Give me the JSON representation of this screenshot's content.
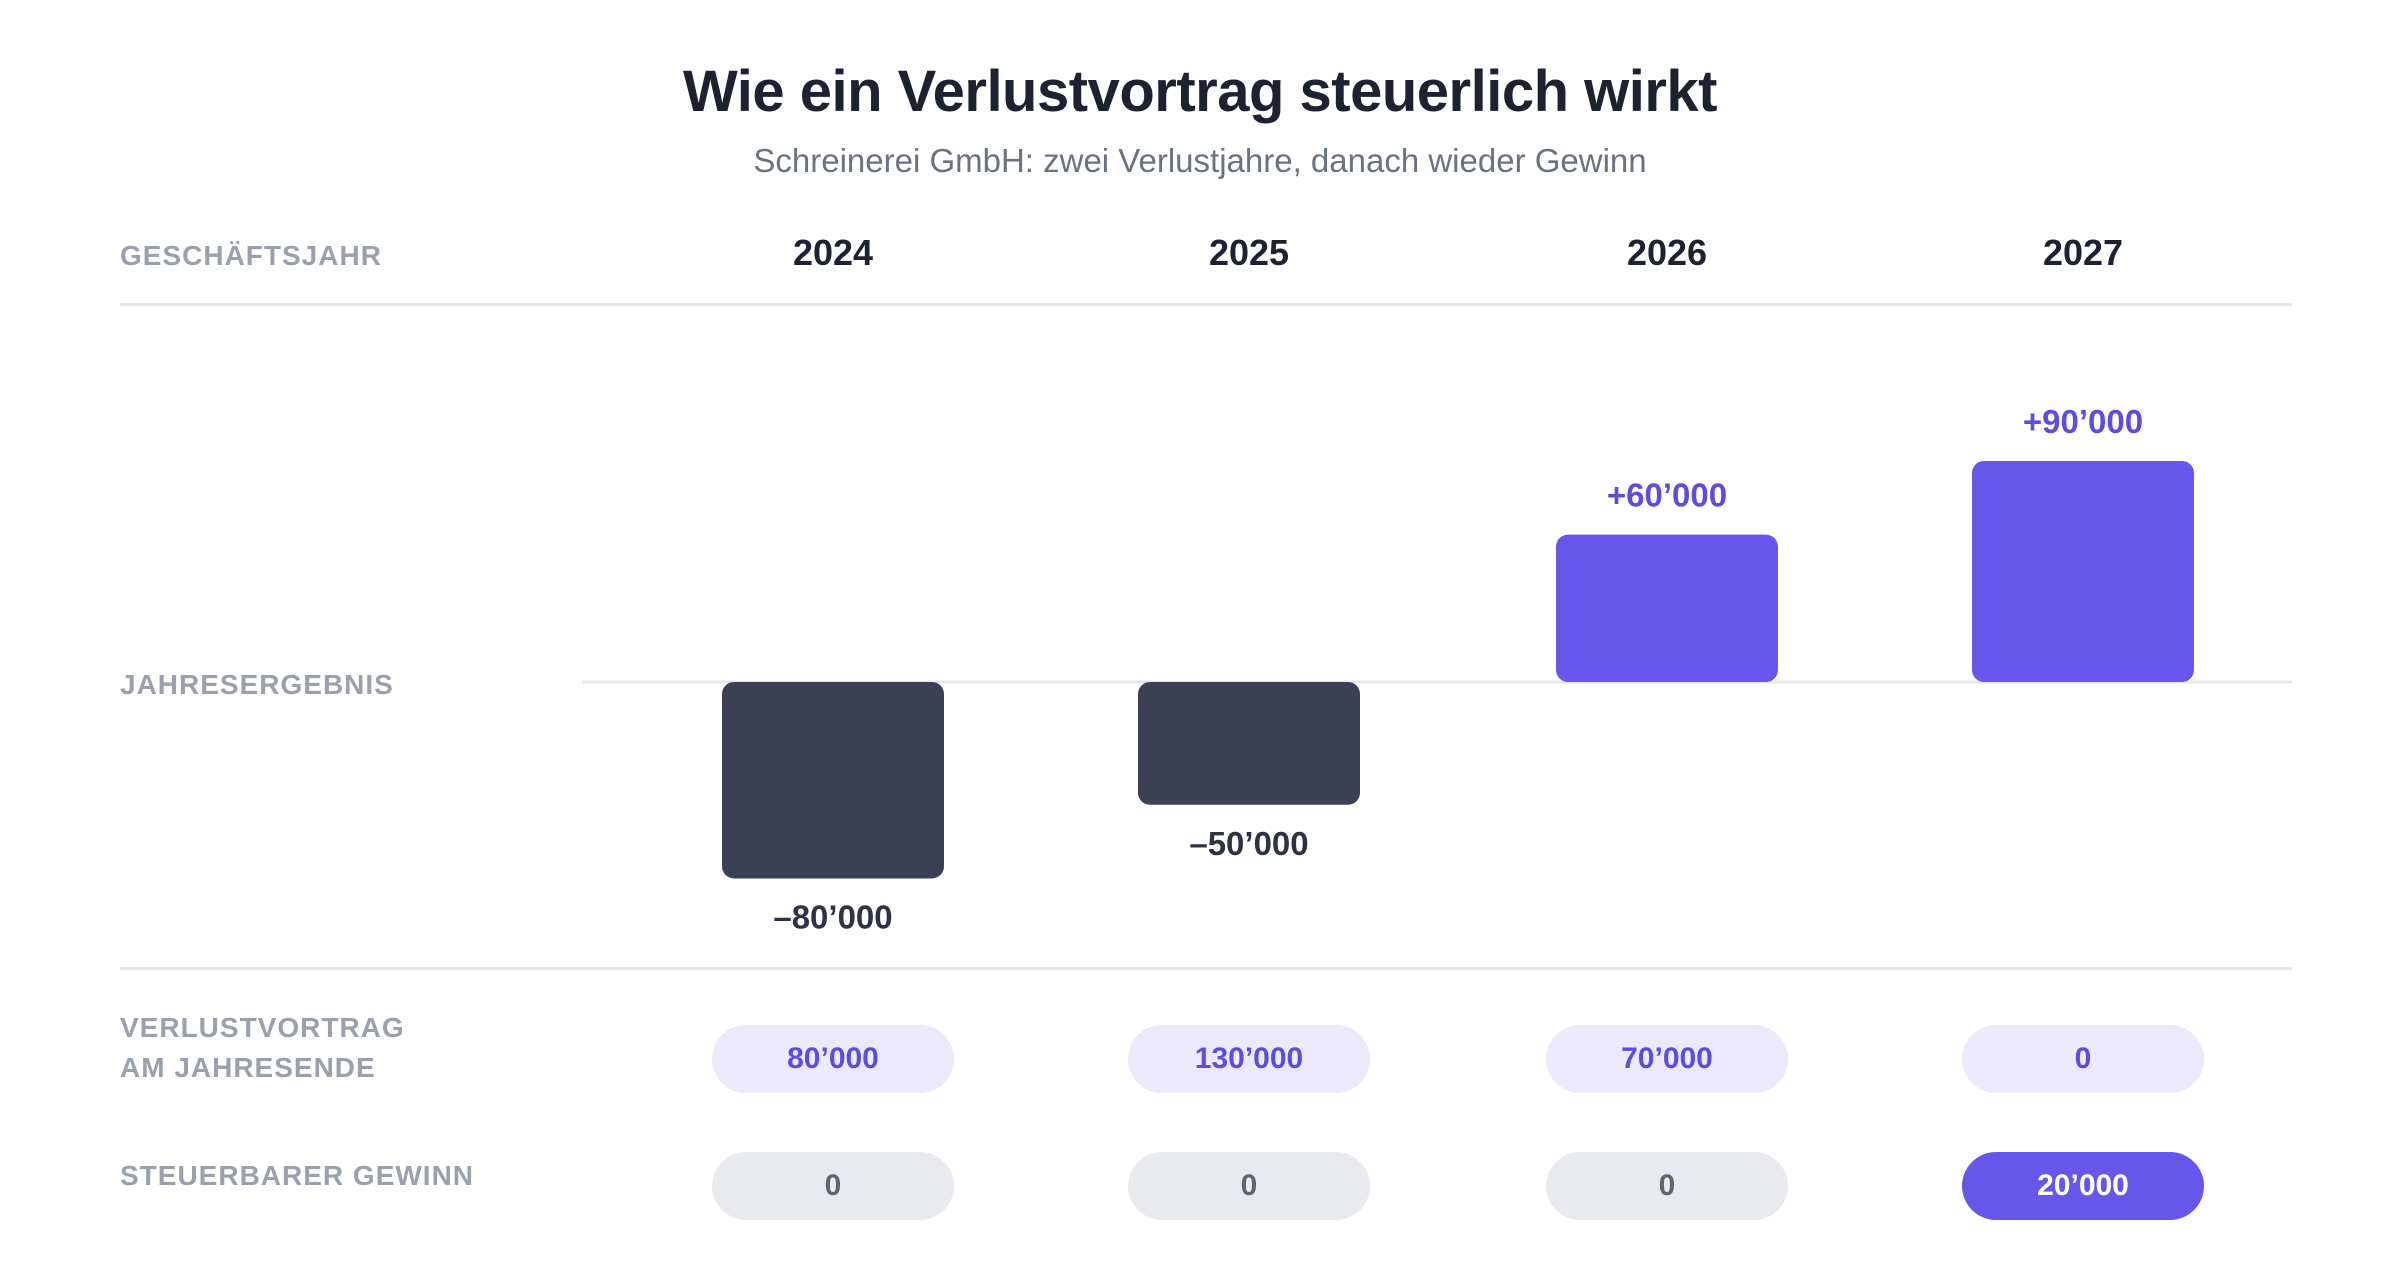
{
  "title": "Wie ein Verlustvortrag steuerlich wirkt",
  "subtitle": "Schreinerei GmbH: zwei Verlustjahre, danach wieder Gewinn",
  "rows": {
    "year_label": "GESCHÄFTSJAHR",
    "result_label": "JAHRESERGEBNIS",
    "carry_label_line1": "VERLUSTVORTRAG",
    "carry_label_line2": "AM JAHRESENDE",
    "taxable_label": "STEUERBARER GEWINN"
  },
  "colors": {
    "loss_bar": "#3b4154",
    "profit_bar": "#6656ea",
    "loss_text": "#2e3344",
    "profit_text": "#5b4de0"
  },
  "chart_data": {
    "type": "bar",
    "categories": [
      "2024",
      "2025",
      "2026",
      "2027"
    ],
    "values": [
      -80000,
      -50000,
      60000,
      90000
    ],
    "value_labels": [
      "–80’000",
      "–50’000",
      "+60’000",
      "+90’000"
    ],
    "title": "Wie ein Verlustvortrag steuerlich wirkt",
    "subtitle": "Schreinerei GmbH: zwei Verlustjahre, danach wieder Gewinn",
    "xlabel": "GESCHÄFTSJAHR",
    "ylabel": "JAHRESERGEBNIS",
    "carryforward": {
      "label": "VERLUSTVORTRAG AM JAHRESENDE",
      "values": [
        80000,
        130000,
        70000,
        0
      ],
      "value_labels": [
        "80’000",
        "130’000",
        "70’000",
        "0"
      ]
    },
    "taxable_profit": {
      "label": "STEUERBARER GEWINN",
      "values": [
        0,
        0,
        0,
        20000
      ],
      "value_labels": [
        "0",
        "0",
        "0",
        "20’000"
      ]
    }
  }
}
